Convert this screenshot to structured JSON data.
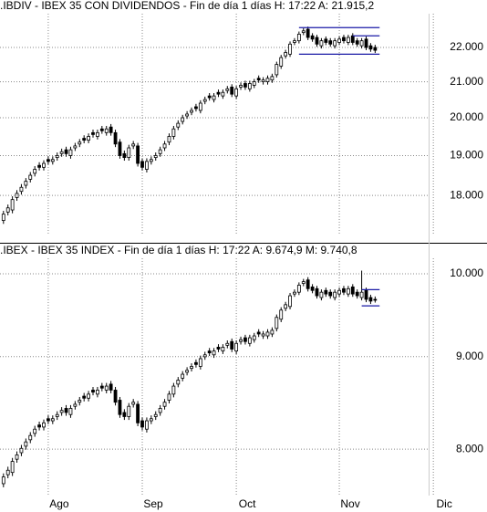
{
  "chart_data": [
    {
      "type": "candlestick",
      "title": ".IBDIV - IBEX 35 CON DIVIDENDOS - Fin de día 1 días H: 17:22 A: 21.915,2",
      "open": [
        17400,
        17600,
        17650,
        17950,
        18100,
        18250,
        18400,
        18550,
        18750,
        18700,
        18900,
        18850,
        18950,
        19050,
        19150,
        19000,
        19200,
        19300,
        19450,
        19400,
        19600,
        19500,
        19700,
        19600,
        19750,
        19600,
        19350,
        19050,
        18950,
        19250,
        19250,
        18850,
        18650,
        18850,
        18950,
        19050,
        19200,
        19350,
        19500,
        19750,
        19900,
        20050,
        20150,
        20300,
        20200,
        20450,
        20600,
        20500,
        20700,
        20600,
        20750,
        20850,
        20600,
        20850,
        20950,
        20800,
        20900,
        21100,
        21000,
        21000,
        21050,
        21200,
        21450,
        21750,
        21800,
        22150,
        22200,
        22450,
        22550,
        22350,
        22300,
        22050,
        22250,
        22200,
        22050,
        22150,
        22300,
        22150,
        22350,
        22200,
        22050,
        22250,
        22050,
        22000,
        null,
        null,
        null,
        null,
        null,
        null,
        null,
        null,
        null,
        null,
        null,
        null,
        null,
        null,
        null,
        null,
        null,
        null,
        null,
        null,
        null,
        null
      ],
      "high": [
        17630,
        17780,
        17980,
        18130,
        18280,
        18430,
        18580,
        18730,
        18830,
        18880,
        18980,
        18980,
        19080,
        19180,
        19230,
        19230,
        19330,
        19430,
        19530,
        19580,
        19680,
        19680,
        19780,
        19780,
        19830,
        19680,
        19430,
        19130,
        19280,
        19380,
        19330,
        18930,
        18930,
        18980,
        19080,
        19230,
        19380,
        19580,
        19780,
        19930,
        20080,
        20180,
        20280,
        20380,
        20480,
        20580,
        20680,
        20680,
        20780,
        20780,
        20880,
        20930,
        20880,
        20980,
        21030,
        21030,
        21080,
        21180,
        21130,
        21180,
        21230,
        21580,
        21780,
        21930,
        22180,
        22280,
        22480,
        22580,
        22630,
        22430,
        22380,
        22280,
        22330,
        22280,
        22280,
        22330,
        22380,
        22380,
        22430,
        22280,
        22280,
        22330,
        22130,
        22080,
        null,
        null,
        null,
        null,
        null,
        null,
        null,
        null,
        null,
        null,
        null,
        null,
        null,
        null,
        null,
        null,
        null,
        null,
        null,
        null,
        null,
        null
      ],
      "low": [
        17320,
        17520,
        17570,
        17870,
        18020,
        18170,
        18320,
        18470,
        18620,
        18620,
        18770,
        18770,
        18870,
        18970,
        18970,
        18920,
        19120,
        19220,
        19320,
        19320,
        19470,
        19420,
        19570,
        19520,
        19520,
        19220,
        18920,
        18870,
        18870,
        19170,
        18720,
        18620,
        18570,
        18770,
        18870,
        18970,
        19120,
        19270,
        19420,
        19670,
        19820,
        19970,
        20070,
        20170,
        20120,
        20370,
        20470,
        20420,
        20570,
        20520,
        20670,
        20570,
        20520,
        20770,
        20770,
        20720,
        20820,
        20970,
        20920,
        20920,
        20970,
        21120,
        21370,
        21670,
        21720,
        22070,
        22120,
        22370,
        22220,
        22170,
        22020,
        21970,
        22070,
        22020,
        21970,
        22070,
        22120,
        22070,
        22070,
        22020,
        21970,
        21920,
        21870,
        21835,
        null,
        null,
        null,
        null,
        null,
        null,
        null,
        null,
        null,
        null,
        null,
        null,
        null,
        null,
        null,
        null,
        null,
        null,
        null,
        null,
        null,
        null
      ],
      "close": [
        17550,
        17700,
        17900,
        18050,
        18200,
        18350,
        18500,
        18650,
        18700,
        18800,
        18850,
        18900,
        19000,
        19100,
        19050,
        19150,
        19250,
        19350,
        19400,
        19500,
        19550,
        19600,
        19650,
        19700,
        19600,
        19300,
        19000,
        18950,
        19200,
        19300,
        18800,
        18700,
        18850,
        18900,
        19000,
        19150,
        19300,
        19500,
        19700,
        19850,
        20000,
        20100,
        20200,
        20250,
        20400,
        20500,
        20550,
        20600,
        20650,
        20700,
        20800,
        20650,
        20800,
        20900,
        20850,
        20950,
        21000,
        21050,
        21050,
        21100,
        21150,
        21500,
        21700,
        21850,
        22100,
        22200,
        22400,
        22500,
        22300,
        22250,
        22100,
        22200,
        22150,
        22100,
        22200,
        22250,
        22200,
        22300,
        22150,
        22100,
        22200,
        22000,
        21950,
        21915,
        null,
        null,
        null,
        null,
        null,
        null,
        null,
        null,
        null,
        null,
        null,
        null,
        null,
        null,
        null,
        null,
        null,
        null,
        null,
        null,
        null,
        null
      ],
      "ylim": [
        17050,
        23030
      ],
      "yticks": [
        {
          "value": 18000,
          "label": "18.000"
        },
        {
          "value": 19000,
          "label": "19.000"
        },
        {
          "value": 20000,
          "label": "20.000"
        },
        {
          "value": 21000,
          "label": "21.000"
        },
        {
          "value": 22000,
          "label": "22.000"
        }
      ],
      "log_scale": true,
      "grid": true,
      "up_color": "#ffffff",
      "down_color": "#000000",
      "line_color": "#000000",
      "hlines": [
        {
          "value": 22600,
          "start": 66,
          "end": 84,
          "color": "#1a1aa6"
        },
        {
          "value": 22350,
          "start": 78,
          "end": 84,
          "color": "#1a1aa6"
        },
        {
          "value": 21800,
          "start": 66,
          "end": 84,
          "color": "#1a1aa6"
        }
      ]
    },
    {
      "type": "candlestick",
      "title": ".IBEX - IBEX 35 INDEX - Fin de día 1 días H: 17:22 A: 9.674,9 M: 9.740,8",
      "categories": [
        null,
        null,
        null,
        null,
        null,
        null,
        null,
        null,
        null,
        null,
        "Ago",
        null,
        null,
        null,
        null,
        null,
        null,
        null,
        null,
        null,
        null,
        null,
        null,
        null,
        null,
        null,
        null,
        null,
        null,
        null,
        null,
        "Sep",
        null,
        null,
        null,
        null,
        null,
        null,
        null,
        null,
        null,
        null,
        null,
        null,
        null,
        null,
        null,
        null,
        null,
        null,
        null,
        null,
        "Oct",
        null,
        null,
        null,
        null,
        null,
        null,
        null,
        null,
        null,
        null,
        null,
        null,
        null,
        null,
        null,
        null,
        null,
        null,
        null,
        null,
        null,
        null,
        "Nov",
        null,
        null,
        null,
        null,
        null,
        null,
        null,
        null,
        null,
        null,
        null,
        null,
        null,
        null,
        null,
        null,
        null,
        null,
        null,
        null,
        "Dic",
        null,
        null,
        null,
        null,
        null,
        null,
        null,
        null,
        null
      ],
      "open": [
        7656,
        7744,
        7766,
        7898,
        7964,
        8030,
        8096,
        8162,
        8250,
        8228,
        8316,
        8294,
        8338,
        8382,
        8426,
        8360,
        8448,
        8492,
        8558,
        8536,
        8624,
        8580,
        8668,
        8624,
        8690,
        8624,
        8514,
        8382,
        8338,
        8470,
        8470,
        8294,
        8206,
        8294,
        8338,
        8382,
        8448,
        8514,
        8580,
        8690,
        8756,
        8822,
        8866,
        8932,
        8888,
        8998,
        9064,
        9020,
        9108,
        9064,
        9130,
        9174,
        9064,
        9174,
        9218,
        9152,
        9196,
        9284,
        9240,
        9240,
        9262,
        9328,
        9438,
        9570,
        9592,
        9746,
        9768,
        9878,
        9922,
        9834,
        9812,
        9702,
        9790,
        9768,
        9702,
        9746,
        9812,
        9746,
        9834,
        9768,
        9702,
        9790,
        9702,
        9680,
        null,
        null,
        null,
        null,
        null,
        null,
        null,
        null,
        null,
        null,
        null,
        null,
        null,
        null,
        null,
        null,
        null,
        null,
        null,
        null,
        null,
        null
      ],
      "high": [
        7757,
        7823,
        7911,
        7977,
        8043,
        8109,
        8175,
        8241,
        8285,
        8307,
        8351,
        8351,
        8395,
        8439,
        8461,
        8461,
        8505,
        8549,
        8593,
        8615,
        8659,
        8659,
        8703,
        8703,
        8725,
        8659,
        8549,
        8417,
        8483,
        8527,
        8505,
        8329,
        8329,
        8351,
        8395,
        8461,
        8527,
        8615,
        8703,
        8769,
        8835,
        8879,
        8923,
        8967,
        9011,
        9055,
        9099,
        9099,
        9143,
        9143,
        9187,
        9209,
        9187,
        9231,
        9253,
        9253,
        9275,
        9319,
        9297,
        9319,
        9341,
        9495,
        9583,
        9649,
        9759,
        9803,
        9891,
        9935,
        9957,
        9869,
        9847,
        9803,
        9825,
        9803,
        9803,
        9825,
        9847,
        9847,
        9869,
        9803,
        10040,
        9825,
        9737,
        9715,
        null,
        null,
        null,
        null,
        null,
        null,
        null,
        null,
        null,
        null,
        null,
        null,
        null,
        null,
        null,
        null,
        null,
        null,
        null,
        null,
        null,
        null
      ],
      "low": [
        7621,
        7709,
        7731,
        7863,
        7929,
        7995,
        8061,
        8127,
        8193,
        8193,
        8259,
        8259,
        8303,
        8347,
        8347,
        8325,
        8413,
        8457,
        8501,
        8501,
        8567,
        8545,
        8611,
        8589,
        8589,
        8457,
        8325,
        8303,
        8303,
        8435,
        8237,
        8193,
        8171,
        8259,
        8303,
        8347,
        8413,
        8479,
        8545,
        8655,
        8721,
        8787,
        8831,
        8875,
        8853,
        8963,
        9007,
        8985,
        9051,
        9029,
        9095,
        9051,
        9029,
        9139,
        9139,
        9117,
        9161,
        9227,
        9205,
        9205,
        9227,
        9293,
        9403,
        9535,
        9557,
        9711,
        9733,
        9843,
        9777,
        9755,
        9689,
        9667,
        9711,
        9689,
        9667,
        9711,
        9733,
        9711,
        9711,
        9689,
        9667,
        9645,
        9623,
        9640,
        null,
        null,
        null,
        null,
        null,
        null,
        null,
        null,
        null,
        null,
        null,
        null,
        null,
        null,
        null,
        null,
        null,
        null,
        null,
        null,
        null,
        null
      ],
      "close": [
        7722,
        7788,
        7876,
        7942,
        8008,
        8074,
        8140,
        8206,
        8228,
        8272,
        8294,
        8316,
        8360,
        8404,
        8382,
        8426,
        8470,
        8514,
        8536,
        8580,
        8602,
        8624,
        8646,
        8668,
        8624,
        8492,
        8360,
        8338,
        8448,
        8492,
        8272,
        8228,
        8294,
        8316,
        8360,
        8426,
        8492,
        8580,
        8668,
        8734,
        8800,
        8844,
        8888,
        8910,
        8976,
        9020,
        9042,
        9064,
        9086,
        9108,
        9152,
        9086,
        9152,
        9196,
        9174,
        9218,
        9240,
        9262,
        9262,
        9284,
        9306,
        9460,
        9548,
        9614,
        9724,
        9768,
        9856,
        9900,
        9812,
        9790,
        9724,
        9768,
        9746,
        9724,
        9768,
        9790,
        9768,
        9812,
        9746,
        9724,
        9768,
        9680,
        9658,
        9675,
        null,
        null,
        null,
        null,
        null,
        null,
        null,
        null,
        null,
        null,
        null,
        null,
        null,
        null,
        null,
        null,
        null,
        null,
        null,
        null,
        null,
        null
      ],
      "ylim": [
        7541,
        10199
      ],
      "yticks": [
        {
          "value": 8000,
          "label": "8.000"
        },
        {
          "value": 9000,
          "label": "9.000"
        },
        {
          "value": 10000,
          "label": "10.000"
        }
      ],
      "log_scale": true,
      "grid": true,
      "up_color": "#ffffff",
      "down_color": "#000000",
      "line_color": "#000000",
      "hlines": [
        {
          "value": 9800,
          "start": 80,
          "end": 84,
          "color": "#1a1aa6"
        },
        {
          "value": 9600,
          "start": 80,
          "end": 84,
          "color": "#1a1aa6"
        }
      ]
    }
  ]
}
